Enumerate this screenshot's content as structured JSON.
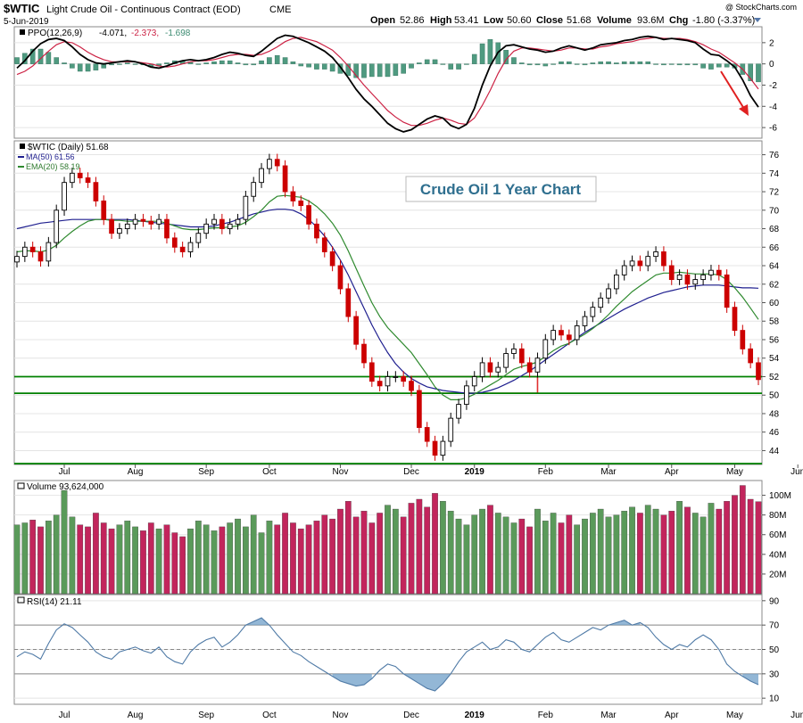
{
  "header": {
    "symbol": "$WTIC",
    "description": "Light Crude Oil - Continuous Contract (EOD)",
    "exchange": "CME",
    "date": "5-Jun-2019",
    "open_label": "Open",
    "open": "52.86",
    "high_label": "High",
    "high": "53.41",
    "low_label": "Low",
    "low": "50.60",
    "close_label": "Close",
    "close": "51.68",
    "volume_label": "Volume",
    "volume": "93.6M",
    "chg_label": "Chg",
    "chg": "-1.80 (-3.37%)",
    "copyright": "@ StockCharts.com"
  },
  "annotation": {
    "title": "Crude Oil 1 Year Chart"
  },
  "colors": {
    "up": "#000000",
    "down": "#cc0000",
    "ma50": "#1f1f8f",
    "ema20": "#2f8a2f",
    "ppo": "#000000",
    "ppo_signal": "#cc2244",
    "histogram": "#4f9a80",
    "vol_up": "#5a9a5a",
    "vol_down": "#c2255c",
    "rsi": "#4f7aa6",
    "support": "#008000",
    "annotation": "#2f6f8f"
  },
  "chart_data": [
    {
      "type": "line",
      "name": "PPO",
      "legend": "PPO(12,26,9) -4.071, -2.373, -1.698",
      "legend_parts": [
        "PPO(12,26,9)",
        "-4.071,",
        "-2.373,",
        "-1.698"
      ],
      "ylim": [
        -7,
        3.5
      ],
      "yticks": [
        2,
        0,
        -2,
        -4,
        -6
      ],
      "ppo": [
        -0.4,
        0.3,
        1.2,
        1.9,
        2.3,
        2.4,
        2.2,
        1.6,
        0.9,
        0.4,
        0.1,
        0.0,
        0.1,
        0.2,
        0.3,
        0.2,
        0.0,
        -0.3,
        -0.4,
        -0.2,
        0.1,
        0.3,
        0.4,
        0.3,
        0.4,
        0.6,
        0.9,
        1.1,
        1.0,
        0.8,
        0.7,
        1.2,
        1.8,
        2.4,
        2.7,
        2.6,
        2.3,
        2.0,
        1.6,
        1.2,
        0.6,
        -0.3,
        -1.3,
        -2.4,
        -3.3,
        -4.0,
        -4.8,
        -5.6,
        -6.1,
        -6.4,
        -6.2,
        -5.7,
        -5.2,
        -4.9,
        -5.1,
        -5.8,
        -6.1,
        -5.7,
        -4.2,
        -2.0,
        -0.2,
        1.1,
        1.7,
        1.8,
        1.6,
        1.4,
        1.3,
        1.1,
        1.2,
        1.5,
        1.7,
        1.5,
        1.3,
        1.5,
        1.8,
        1.9,
        2.0,
        2.2,
        2.3,
        2.5,
        2.6,
        2.5,
        2.3,
        2.4,
        2.3,
        2.2,
        2.0,
        1.4,
        0.9,
        0.8,
        0.3,
        -0.3,
        -1.5,
        -3.0,
        -4.071
      ],
      "signal": [
        -1.0,
        -0.7,
        -0.2,
        0.5,
        1.2,
        1.8,
        2.1,
        2.0,
        1.6,
        1.1,
        0.7,
        0.4,
        0.2,
        0.2,
        0.2,
        0.2,
        0.1,
        0.0,
        -0.2,
        -0.3,
        -0.2,
        0.0,
        0.2,
        0.3,
        0.3,
        0.4,
        0.6,
        0.8,
        0.9,
        0.9,
        0.8,
        0.9,
        1.2,
        1.6,
        2.1,
        2.4,
        2.5,
        2.3,
        2.1,
        1.7,
        1.3,
        0.6,
        -0.2,
        -1.1,
        -2.0,
        -2.8,
        -3.6,
        -4.4,
        -5.0,
        -5.5,
        -5.8,
        -5.8,
        -5.6,
        -5.3,
        -5.1,
        -5.3,
        -5.6,
        -5.7,
        -5.1,
        -3.9,
        -2.5,
        -0.9,
        0.4,
        1.2,
        1.5,
        1.5,
        1.4,
        1.3,
        1.2,
        1.3,
        1.5,
        1.5,
        1.4,
        1.4,
        1.6,
        1.7,
        1.9,
        2.0,
        2.1,
        2.3,
        2.4,
        2.5,
        2.4,
        2.4,
        2.4,
        2.3,
        2.1,
        1.8,
        1.4,
        1.1,
        0.6,
        0.1,
        -0.5,
        -1.4,
        -2.373
      ]
    },
    {
      "type": "candlestick",
      "name": "$WTIC (Daily) 51.68",
      "legend_main": "$WTIC (Daily) 51.68",
      "legend_ma": "MA(50) 61.56",
      "legend_ema": "EMA(20) 58.19",
      "ylim": [
        42.5,
        77.5
      ],
      "yticks": [
        76,
        74,
        72,
        70,
        68,
        66,
        64,
        62,
        60,
        58,
        56,
        54,
        52,
        50,
        48,
        46,
        44
      ],
      "xlabels": [
        {
          "label": "Jul",
          "i": 6
        },
        {
          "label": "Aug",
          "i": 15
        },
        {
          "label": "Sep",
          "i": 24
        },
        {
          "label": "Oct",
          "i": 32
        },
        {
          "label": "Nov",
          "i": 41
        },
        {
          "label": "Dec",
          "i": 50
        },
        {
          "label": "2019",
          "i": 58,
          "bold": true
        },
        {
          "label": "Feb",
          "i": 67
        },
        {
          "label": "Mar",
          "i": 75
        },
        {
          "label": "Apr",
          "i": 83
        },
        {
          "label": "May",
          "i": 91
        },
        {
          "label": "Jun",
          "i": 99
        }
      ],
      "close": [
        65,
        66,
        65.5,
        64.5,
        66.5,
        70,
        73,
        74,
        73.5,
        73,
        71,
        69,
        67.5,
        68,
        68.5,
        69,
        68.8,
        68.5,
        69,
        67,
        66,
        65.5,
        66.5,
        67.5,
        68.5,
        69,
        68,
        68.5,
        69,
        71.5,
        73,
        74.5,
        75.5,
        74.8,
        72,
        71,
        70.5,
        68.5,
        67,
        65.5,
        64,
        61.5,
        58.5,
        55.5,
        53.5,
        51.5,
        51,
        52,
        52,
        51.5,
        50.5,
        46.5,
        45,
        43.5,
        45,
        47.5,
        49,
        51,
        52,
        53.5,
        52.5,
        53,
        54.5,
        55,
        53.5,
        52.5,
        54,
        56,
        57,
        56.5,
        56,
        57.5,
        58.5,
        59.5,
        60.5,
        61.5,
        63,
        64,
        64.5,
        64,
        65,
        65.5,
        64,
        62.5,
        63,
        62,
        62.5,
        63,
        63.5,
        63,
        59.5,
        57,
        55,
        53.5,
        51.68
      ],
      "ma50": [
        68,
        68.2,
        68.4,
        68.6,
        68.7,
        68.8,
        68.9,
        69,
        69,
        69,
        69,
        69,
        69,
        69,
        69,
        68.9,
        68.8,
        68.7,
        68.6,
        68.5,
        68.4,
        68.3,
        68.2,
        68.2,
        68.2,
        68.3,
        68.5,
        68.7,
        69,
        69.3,
        69.6,
        69.8,
        70,
        70.1,
        70.1,
        70,
        69.6,
        69,
        68.2,
        67.2,
        66,
        64.6,
        63,
        61.2,
        59.4,
        57.6,
        56,
        54.6,
        53.4,
        52.5,
        51.8,
        51.3,
        50.9,
        50.7,
        50.5,
        50.4,
        50.3,
        50.2,
        50.2,
        50.3,
        50.5,
        50.8,
        51.2,
        51.6,
        52.1,
        52.6,
        53.2,
        53.8,
        54.4,
        55,
        55.6,
        56.2,
        56.8,
        57.3,
        57.8,
        58.3,
        58.8,
        59.3,
        59.7,
        60.1,
        60.5,
        60.8,
        61.1,
        61.3,
        61.5,
        61.7,
        61.8,
        61.9,
        61.9,
        61.9,
        61.8,
        61.7,
        61.6,
        61.6,
        61.56
      ],
      "ema20": [
        65.5,
        65.6,
        65.6,
        65.5,
        65.7,
        66.2,
        67,
        67.7,
        68.3,
        68.8,
        69,
        69,
        68.9,
        68.9,
        68.8,
        68.8,
        68.8,
        68.8,
        68.8,
        68.6,
        68.3,
        68,
        67.9,
        67.9,
        68,
        68.1,
        68.1,
        68.2,
        68.3,
        68.7,
        69.3,
        70,
        70.9,
        71.5,
        71.6,
        71.5,
        71.4,
        71,
        70.4,
        69.6,
        68.6,
        67.3,
        65.6,
        63.7,
        61.8,
        60,
        58.5,
        57.3,
        56.4,
        55.5,
        54.6,
        53.4,
        52.2,
        50.9,
        50,
        49.5,
        49.5,
        49.7,
        50.1,
        50.6,
        51.1,
        51.6,
        52.2,
        52.8,
        53.1,
        53.3,
        53.6,
        54.2,
        54.8,
        55.3,
        55.6,
        56.1,
        56.6,
        57.2,
        57.9,
        58.7,
        59.6,
        60.4,
        61.2,
        61.8,
        62.4,
        63,
        63.2,
        63.2,
        63.3,
        63.2,
        63.1,
        63.1,
        63.1,
        63,
        62.5,
        61.6,
        60.6,
        59.4,
        58.19
      ],
      "support_levels": [
        52,
        50.2,
        42.6
      ],
      "resistance_box": {
        "from_i": 50,
        "to_i": 66,
        "top": 52,
        "bottom": 50.2
      }
    },
    {
      "type": "bar",
      "name": "Volume",
      "legend": "Volume 93,624,000",
      "ylim": [
        0,
        115
      ],
      "yticks": [
        100,
        80,
        60,
        40,
        20
      ],
      "ytick_labels": [
        "100M",
        "80M",
        "60M",
        "40M",
        "20M"
      ],
      "values": [
        70,
        72,
        75,
        68,
        74,
        80,
        105,
        78,
        70,
        68,
        82,
        72,
        66,
        70,
        74,
        68,
        64,
        72,
        66,
        70,
        62,
        58,
        66,
        74,
        70,
        64,
        68,
        72,
        76,
        68,
        80,
        62,
        74,
        70,
        82,
        72,
        66,
        70,
        74,
        80,
        76,
        86,
        94,
        78,
        84,
        72,
        82,
        90,
        86,
        78,
        92,
        96,
        88,
        102,
        94,
        84,
        76,
        70,
        80,
        86,
        90,
        82,
        78,
        72,
        76,
        68,
        86,
        74,
        82,
        72,
        80,
        70,
        76,
        82,
        86,
        78,
        80,
        84,
        88,
        82,
        90,
        86,
        80,
        84,
        94,
        88,
        82,
        78,
        92,
        86,
        94,
        100,
        110,
        96,
        93.6
      ]
    },
    {
      "type": "line",
      "name": "RSI(14)",
      "legend": "RSI(14) 21.11",
      "ylim": [
        5,
        95
      ],
      "yticks": [
        90,
        70,
        50,
        30,
        10
      ],
      "levels": [
        70,
        50,
        30
      ],
      "values": [
        44,
        48,
        46,
        42,
        55,
        66,
        71,
        68,
        62,
        56,
        48,
        44,
        42,
        48,
        50,
        52,
        49,
        47,
        52,
        44,
        40,
        38,
        48,
        54,
        58,
        60,
        52,
        56,
        62,
        70,
        73,
        76,
        70,
        62,
        55,
        48,
        45,
        40,
        36,
        32,
        28,
        24,
        22,
        20,
        21,
        26,
        33,
        38,
        36,
        30,
        26,
        22,
        18,
        16,
        22,
        30,
        40,
        48,
        52,
        56,
        50,
        52,
        58,
        56,
        50,
        48,
        54,
        60,
        64,
        58,
        56,
        60,
        64,
        68,
        66,
        70,
        72,
        74,
        70,
        72,
        68,
        60,
        54,
        50,
        54,
        52,
        58,
        62,
        58,
        50,
        38,
        32,
        28,
        24,
        21.11
      ]
    }
  ]
}
